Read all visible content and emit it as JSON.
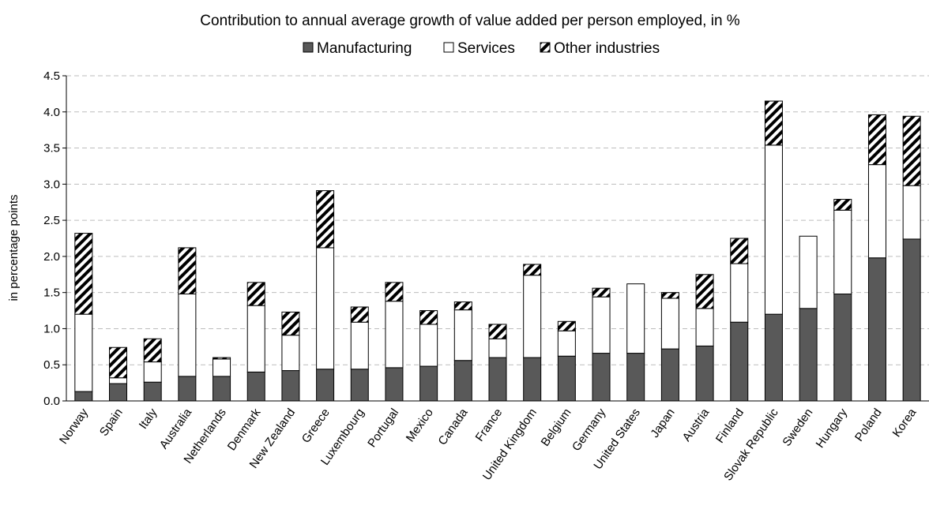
{
  "chart_data": {
    "type": "bar",
    "stacked": true,
    "title": "Contribution to annual average growth of value added per person employed, in %",
    "ylabel": "in percentage points",
    "xlabel": "",
    "ylim": [
      0,
      4.5
    ],
    "ytick_step": 0.5,
    "ytick_labels": [
      "0.0",
      "0.5",
      "1.0",
      "1.5",
      "2.0",
      "2.5",
      "3.0",
      "3.5",
      "4.0",
      "4.5"
    ],
    "grid": "horizontal dashed",
    "legend_position": "top-center",
    "categories": [
      "Norway",
      "Spain",
      "Italy",
      "Australia",
      "Netherlands",
      "Denmark",
      "New Zealand",
      "Greece",
      "Luxembourg",
      "Portugal",
      "Mexico",
      "Canada",
      "France",
      "United Kingdom",
      "Belgium",
      "Germany",
      "United States",
      "Japan",
      "Austria",
      "Finland",
      "Slovak Republic",
      "Sweden",
      "Hungary",
      "Poland",
      "Korea"
    ],
    "series": [
      {
        "name": "Manufacturing",
        "fill": "#595959",
        "pattern": "solid",
        "values": [
          0.13,
          0.24,
          0.26,
          0.34,
          0.34,
          0.4,
          0.42,
          0.44,
          0.44,
          0.46,
          0.48,
          0.56,
          0.6,
          0.6,
          0.62,
          0.66,
          0.66,
          0.72,
          0.76,
          1.09,
          1.2,
          1.28,
          1.48,
          1.98,
          2.24
        ]
      },
      {
        "name": "Services",
        "fill": "#ffffff",
        "pattern": "solid",
        "values": [
          1.07,
          0.08,
          0.28,
          1.14,
          0.24,
          0.92,
          0.49,
          1.68,
          0.65,
          0.92,
          0.58,
          0.7,
          0.26,
          1.14,
          0.35,
          0.78,
          0.96,
          0.7,
          0.52,
          0.81,
          2.34,
          1.0,
          1.16,
          1.29,
          0.74
        ]
      },
      {
        "name": "Other industries",
        "fill": "#ffffff",
        "pattern": "diagonal-hatch",
        "values": [
          1.12,
          0.42,
          0.32,
          0.64,
          0.02,
          0.32,
          0.32,
          0.79,
          0.21,
          0.26,
          0.19,
          0.11,
          0.2,
          0.15,
          0.13,
          0.12,
          0.0,
          0.08,
          0.47,
          0.35,
          0.61,
          0.0,
          0.15,
          0.69,
          0.96
        ]
      }
    ]
  }
}
